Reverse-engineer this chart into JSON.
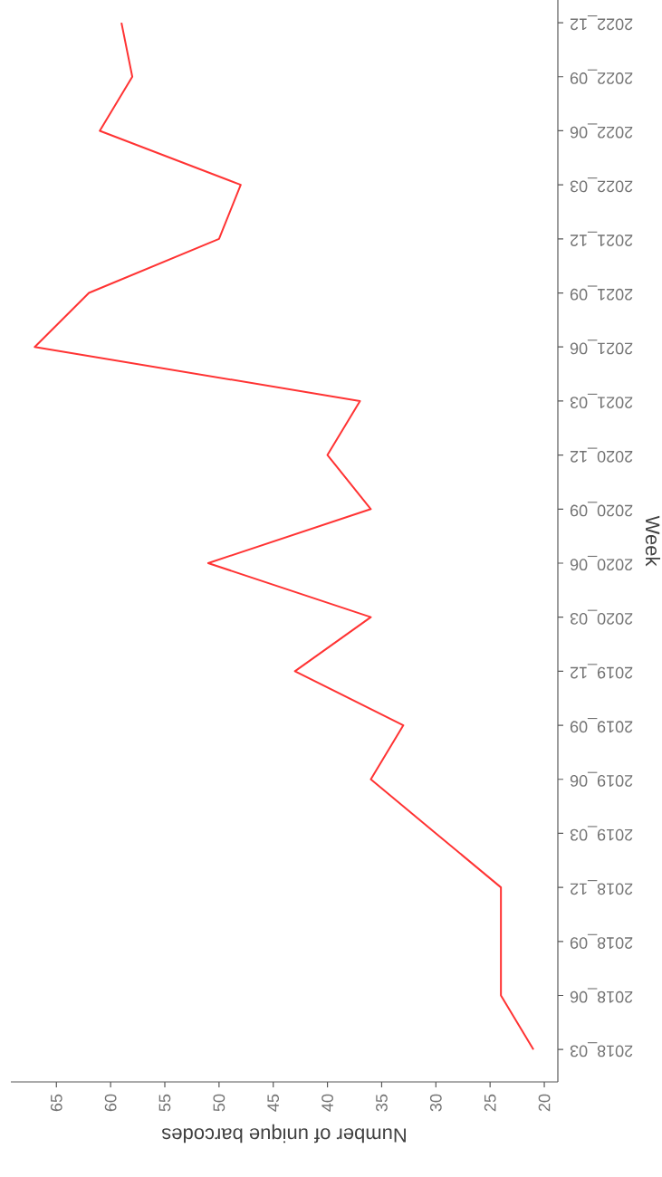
{
  "chart_data": {
    "type": "line",
    "orientation": "horizontal",
    "xlabel": "Number of unique barcodes",
    "ylabel": "Week",
    "categories": [
      "2022_12",
      "2022_09",
      "2022_06",
      "2022_03",
      "2021_12",
      "2021_09",
      "2021_06",
      "2021_03",
      "2020_12",
      "2020_09",
      "2020_06",
      "2020_03",
      "2019_12",
      "2019_09",
      "2019_06",
      "2019_03",
      "2018_12",
      "2018_09",
      "2018_06",
      "2018_03"
    ],
    "series": [
      {
        "color": "#ff3333",
        "values": [
          59,
          58,
          61,
          48,
          50,
          62,
          67,
          37,
          40,
          36,
          51,
          36,
          43,
          33,
          36,
          30,
          24,
          24,
          24,
          21
        ]
      }
    ],
    "xlim": [
      69.2,
      18.75
    ],
    "xticks": [
      65,
      60,
      55,
      50,
      45,
      40,
      35,
      30,
      25,
      20
    ],
    "marker": "none",
    "line_style": "solid"
  }
}
